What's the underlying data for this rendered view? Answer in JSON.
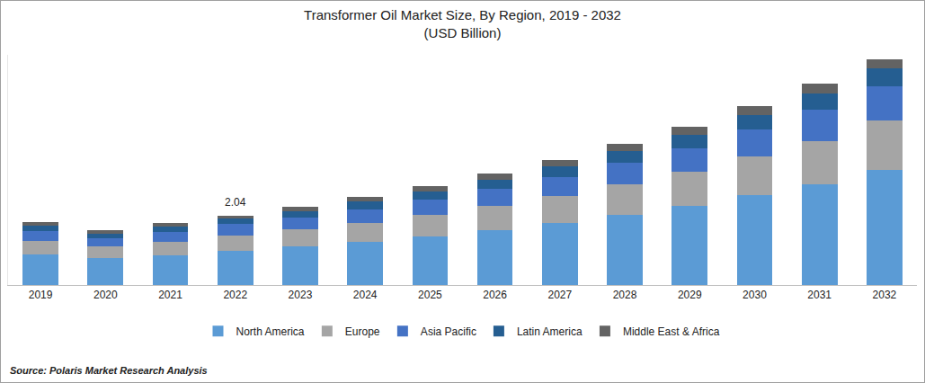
{
  "chart_data": {
    "type": "bar",
    "stacked": true,
    "title": "Transformer Oil Market Size, By Region, 2019 - 2032",
    "subtitle": "(USD Billion)",
    "source": "Source: Polaris Market Research Analysis",
    "categories": [
      "2019",
      "2020",
      "2021",
      "2022",
      "2023",
      "2024",
      "2025",
      "2026",
      "2027",
      "2028",
      "2029",
      "2030",
      "2031",
      "2032"
    ],
    "series": [
      {
        "name": "North America",
        "color": "#5b9bd5",
        "values": [
          0.9,
          0.8,
          0.88,
          1.01,
          1.14,
          1.27,
          1.43,
          1.62,
          1.83,
          2.07,
          2.33,
          2.65,
          2.97,
          3.39
        ]
      },
      {
        "name": "Europe",
        "color": "#a5a5a5",
        "values": [
          0.4,
          0.34,
          0.4,
          0.45,
          0.5,
          0.57,
          0.64,
          0.72,
          0.81,
          0.9,
          1.01,
          1.14,
          1.29,
          1.46
        ]
      },
      {
        "name": "Asia Pacific",
        "color": "#4472c4",
        "values": [
          0.29,
          0.24,
          0.29,
          0.34,
          0.35,
          0.4,
          0.45,
          0.5,
          0.56,
          0.64,
          0.71,
          0.8,
          0.91,
          1.03
        ]
      },
      {
        "name": "Latin America",
        "color": "#255e91",
        "values": [
          0.16,
          0.14,
          0.16,
          0.16,
          0.19,
          0.22,
          0.24,
          0.27,
          0.3,
          0.34,
          0.38,
          0.43,
          0.48,
          0.53
        ]
      },
      {
        "name": "Middle East & Africa",
        "color": "#636363",
        "values": [
          0.11,
          0.1,
          0.1,
          0.08,
          0.13,
          0.14,
          0.16,
          0.18,
          0.19,
          0.21,
          0.24,
          0.26,
          0.29,
          0.27
        ]
      }
    ],
    "annotations": [
      {
        "category": "2022",
        "text": "2.04"
      }
    ],
    "ylim": [
      0,
      6.8
    ],
    "yticks": [],
    "tick_labels": "x",
    "grid": false,
    "legend": "bottom"
  }
}
